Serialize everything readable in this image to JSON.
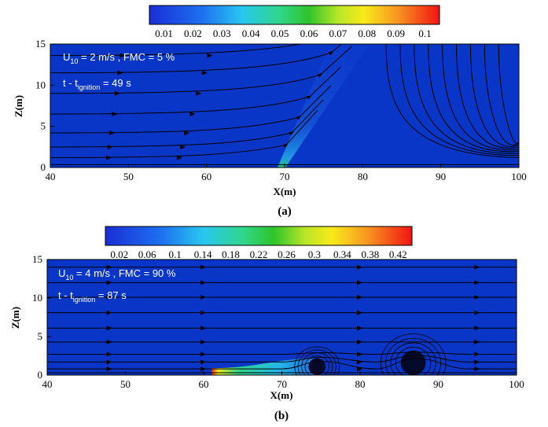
{
  "chart_data": [
    {
      "type": "heatmap",
      "panel_label": "(a)",
      "colorbar": {
        "ticks": [
          "0.01",
          "0.02",
          "0.03",
          "0.04",
          "0.05",
          "0.06",
          "0.07",
          "0.08",
          "0.09",
          "0.1"
        ],
        "range": [
          0.005,
          0.105
        ]
      },
      "annotation": {
        "line1": "U",
        "line1_sub": "10",
        "line1_rest": " = 2 m/s , FMC = 5 %",
        "line2": "t - t",
        "line2_sub": "ignition",
        "line2_rest": " = 49 s"
      },
      "xlabel": "X(m)",
      "ylabel": "Z(m)",
      "xlim": [
        40,
        100
      ],
      "ylim": [
        0,
        15
      ],
      "xticks": [
        "40",
        "50",
        "60",
        "70",
        "80",
        "90",
        "100"
      ],
      "yticks": [
        "0",
        "5",
        "10",
        "15"
      ],
      "background_color": "#0a36c8",
      "plume": {
        "base_x": 69.5,
        "top_x": 78,
        "top_y": 15
      },
      "streamline_ys_left": [
        1.2,
        2.5,
        4.2,
        6.5,
        9,
        11.5,
        13.6
      ]
    },
    {
      "type": "heatmap",
      "panel_label": "(b)",
      "colorbar": {
        "ticks": [
          "0.02",
          "0.06",
          "0.1",
          "0.14",
          "0.18",
          "0.22",
          "0.26",
          "0.3",
          "0.34",
          "0.38",
          "0.42"
        ],
        "range": [
          0.0,
          0.44
        ]
      },
      "annotation": {
        "line1": "U",
        "line1_sub": "10",
        "line1_rest": " = 4 m/s ,  FMC = 90 %",
        "line2": "t - t",
        "line2_sub": "ignition",
        "line2_rest": " = 87 s"
      },
      "xlabel": "X(m)",
      "ylabel": "Z(m)",
      "xlim": [
        40,
        100
      ],
      "ylim": [
        0,
        15
      ],
      "xticks": [
        "40",
        "50",
        "60",
        "70",
        "80",
        "90",
        "100"
      ],
      "yticks": [
        "0",
        "5",
        "10",
        "15"
      ],
      "background_color": "#0a36c8",
      "fire_band": {
        "x_start": 61,
        "x_end": 75
      },
      "vortices": [
        {
          "x": 74.5,
          "r": 1.1
        },
        {
          "x": 86.8,
          "r": 1.6
        }
      ],
      "streamline_ys_left": [
        0.8,
        1.7,
        2.7,
        4.3,
        6.1,
        8.1,
        10.1,
        12.0,
        14.0
      ]
    }
  ]
}
